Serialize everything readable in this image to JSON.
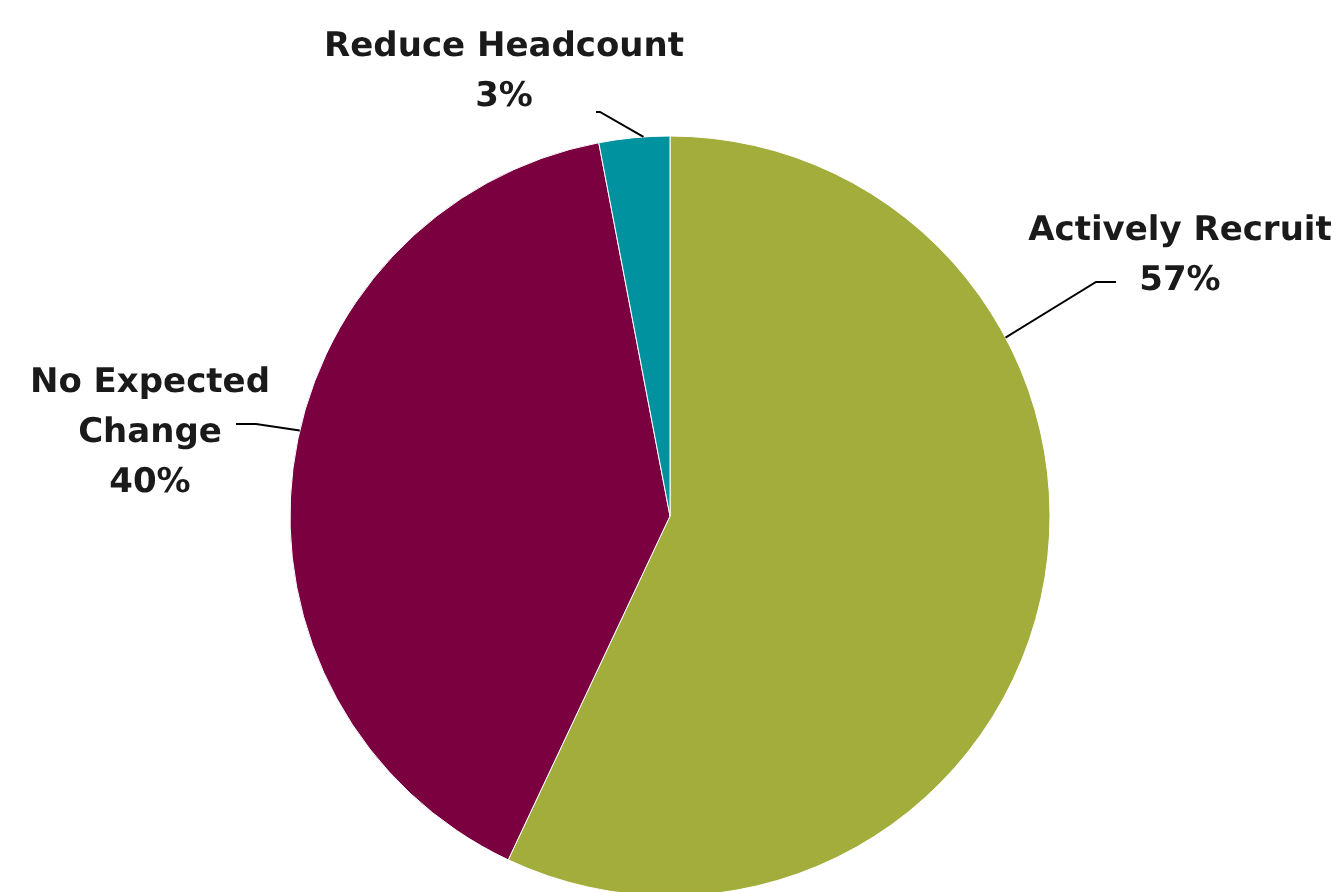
{
  "chart_data": {
    "type": "pie",
    "categories": [
      "Actively Recruit",
      "No Expected Change",
      "Reduce Headcount"
    ],
    "values": [
      57,
      40,
      3
    ],
    "colors": [
      "#a3ad3b",
      "#7a0040",
      "#00939f"
    ],
    "value_labels": [
      "57%",
      "40%",
      "3%"
    ]
  }
}
